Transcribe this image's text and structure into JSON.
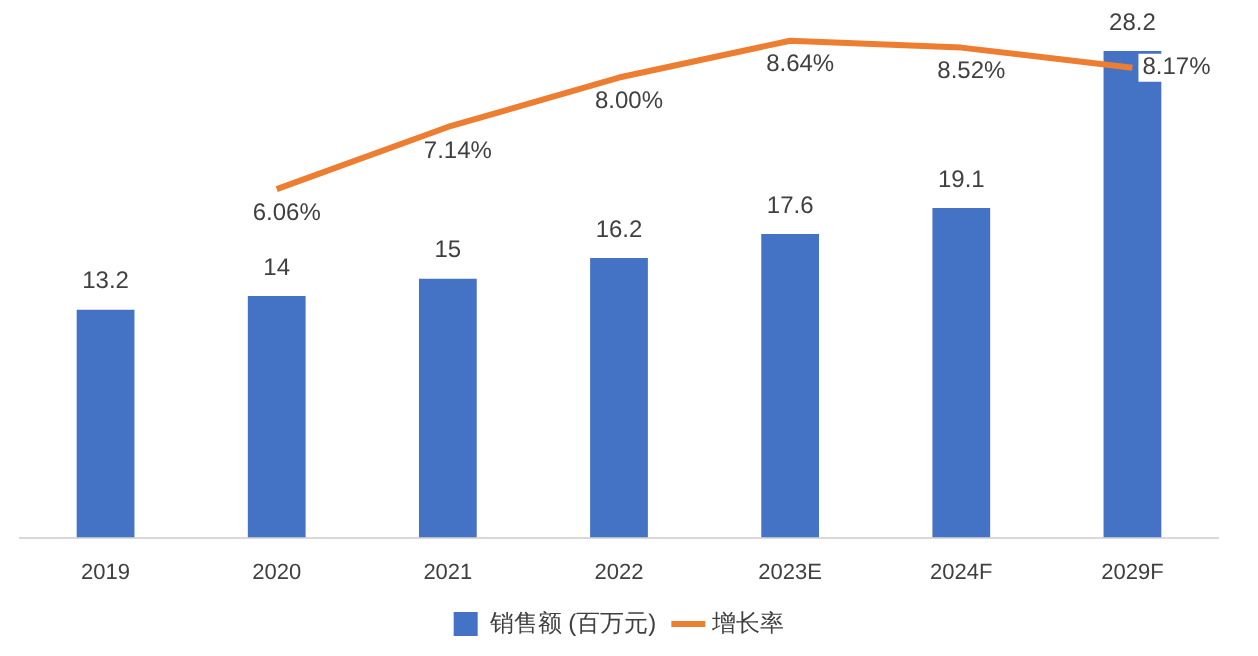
{
  "chart_data": {
    "type": "bar",
    "categories": [
      "2019",
      "2020",
      "2021",
      "2022",
      "2023E",
      "2024F",
      "2029F"
    ],
    "series": [
      {
        "name": "销售额 (百万元)",
        "color": "#4472c4",
        "values": [
          13.2,
          14,
          15,
          16.2,
          17.6,
          19.1,
          28.2
        ],
        "value_labels": [
          "13.2",
          "14",
          "15",
          "16.2",
          "17.6",
          "19.1",
          "28.2"
        ]
      },
      {
        "name": "增长率",
        "type": "line",
        "axis": "y2",
        "color": "#ed7d31",
        "values": [
          null,
          6.06,
          7.14,
          8.0,
          8.64,
          8.52,
          8.17
        ],
        "value_labels": [
          null,
          "6.06%",
          "7.14%",
          "8.00%",
          "8.64%",
          "8.52%",
          "8.17%"
        ]
      }
    ],
    "tick_labels": "x",
    "grid": false,
    "legend": "bottom",
    "marker": "none"
  }
}
